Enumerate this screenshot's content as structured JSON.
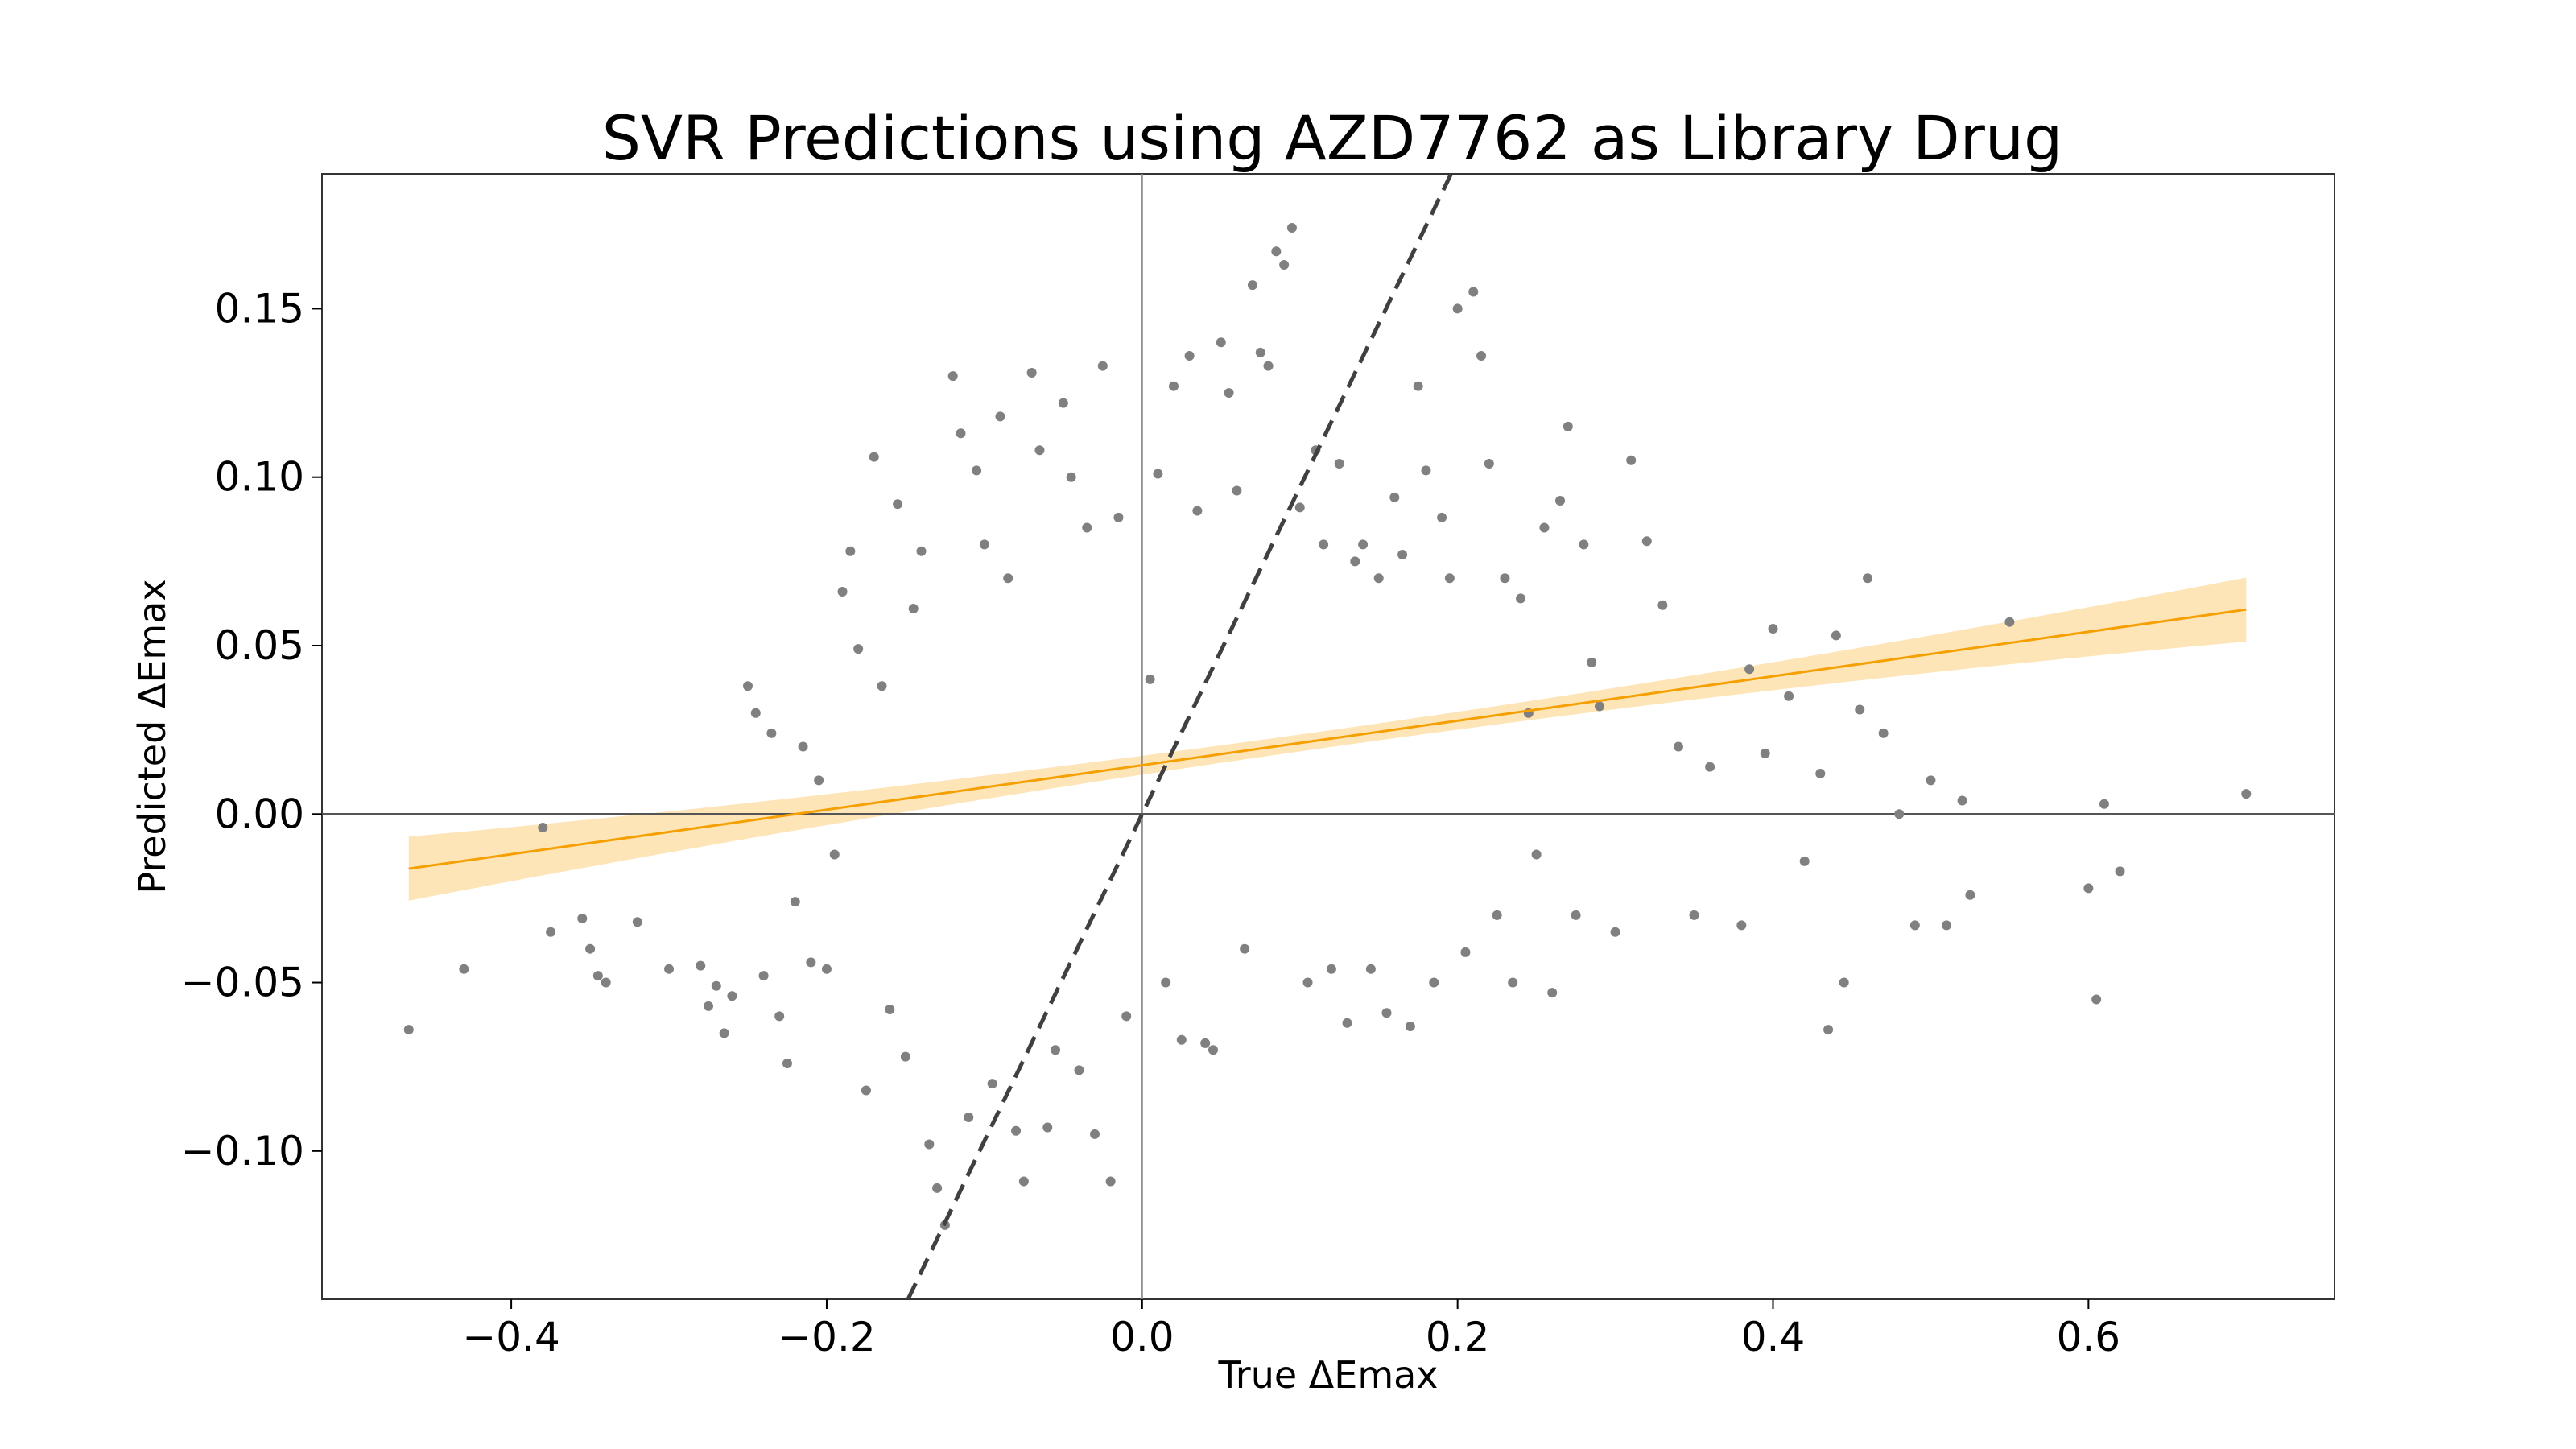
{
  "chart_data": {
    "type": "scatter",
    "title": "SVR Predictions using AZD7762 as Library Drug",
    "xlabel": "True ΔEmax",
    "ylabel": "Predicted ΔEmax",
    "xlim": [
      -0.52,
      0.756
    ],
    "ylim": [
      -0.144,
      0.19
    ],
    "xticks": [
      -0.4,
      -0.2,
      0.0,
      0.2,
      0.4,
      0.6
    ],
    "xtick_labels": [
      "−0.4",
      "−0.2",
      "0.0",
      "0.2",
      "0.4",
      "0.6"
    ],
    "yticks": [
      -0.1,
      -0.05,
      0.0,
      0.05,
      0.1,
      0.15
    ],
    "ytick_labels": [
      "−0.10",
      "−0.05",
      "0.00",
      "0.05",
      "0.10",
      "0.15"
    ],
    "grid": false,
    "reference_lines": {
      "x": 0,
      "y": 0
    },
    "identity_line": {
      "slope": 0.97,
      "intercept": 0.0
    },
    "regression": {
      "x_range": [
        -0.465,
        0.7
      ],
      "slope": 0.066,
      "intercept": 0.0145,
      "ci_halfwidth_at_ends": 0.0095,
      "ci_halfwidth_at_center": 0.0025
    },
    "colors": {
      "points": "#808080",
      "regression": "#f5a000",
      "ci_band": "#fde5b8",
      "identity": "#404040",
      "ref_lines": "#555555"
    },
    "series": [
      {
        "points": [
          [
            -0.465,
            -0.064
          ],
          [
            -0.43,
            -0.046
          ],
          [
            -0.38,
            -0.004
          ],
          [
            -0.375,
            -0.035
          ],
          [
            -0.355,
            -0.031
          ],
          [
            -0.35,
            -0.04
          ],
          [
            -0.345,
            -0.048
          ],
          [
            -0.34,
            -0.05
          ],
          [
            -0.32,
            -0.032
          ],
          [
            -0.3,
            -0.046
          ],
          [
            -0.28,
            -0.045
          ],
          [
            -0.275,
            -0.057
          ],
          [
            -0.27,
            -0.051
          ],
          [
            -0.265,
            -0.065
          ],
          [
            -0.26,
            -0.054
          ],
          [
            -0.25,
            0.038
          ],
          [
            -0.245,
            0.03
          ],
          [
            -0.24,
            -0.048
          ],
          [
            -0.235,
            0.024
          ],
          [
            -0.23,
            -0.06
          ],
          [
            -0.225,
            -0.074
          ],
          [
            -0.22,
            -0.026
          ],
          [
            -0.215,
            0.02
          ],
          [
            -0.21,
            -0.044
          ],
          [
            -0.205,
            0.01
          ],
          [
            -0.2,
            -0.046
          ],
          [
            -0.195,
            -0.012
          ],
          [
            -0.19,
            0.066
          ],
          [
            -0.185,
            0.078
          ],
          [
            -0.18,
            0.049
          ],
          [
            -0.175,
            -0.082
          ],
          [
            -0.17,
            0.106
          ],
          [
            -0.165,
            0.038
          ],
          [
            -0.16,
            -0.058
          ],
          [
            -0.155,
            0.092
          ],
          [
            -0.15,
            -0.072
          ],
          [
            -0.145,
            0.061
          ],
          [
            -0.14,
            0.078
          ],
          [
            -0.135,
            -0.098
          ],
          [
            -0.13,
            -0.111
          ],
          [
            -0.125,
            -0.122
          ],
          [
            -0.12,
            0.13
          ],
          [
            -0.115,
            0.113
          ],
          [
            -0.11,
            -0.09
          ],
          [
            -0.105,
            0.102
          ],
          [
            -0.1,
            0.08
          ],
          [
            -0.095,
            -0.08
          ],
          [
            -0.09,
            0.118
          ],
          [
            -0.085,
            0.07
          ],
          [
            -0.08,
            -0.094
          ],
          [
            -0.075,
            -0.109
          ],
          [
            -0.07,
            0.131
          ],
          [
            -0.065,
            0.108
          ],
          [
            -0.06,
            -0.093
          ],
          [
            -0.055,
            -0.07
          ],
          [
            -0.05,
            0.122
          ],
          [
            -0.045,
            0.1
          ],
          [
            -0.04,
            -0.076
          ],
          [
            -0.035,
            0.085
          ],
          [
            -0.03,
            -0.095
          ],
          [
            -0.025,
            0.133
          ],
          [
            -0.02,
            -0.109
          ],
          [
            -0.015,
            0.088
          ],
          [
            -0.01,
            -0.06
          ],
          [
            0.005,
            0.04
          ],
          [
            0.01,
            0.101
          ],
          [
            0.015,
            -0.05
          ],
          [
            0.02,
            0.127
          ],
          [
            0.025,
            -0.067
          ],
          [
            0.03,
            0.136
          ],
          [
            0.035,
            0.09
          ],
          [
            0.04,
            -0.068
          ],
          [
            0.045,
            -0.07
          ],
          [
            0.05,
            0.14
          ],
          [
            0.055,
            0.125
          ],
          [
            0.06,
            0.096
          ],
          [
            0.065,
            -0.04
          ],
          [
            0.07,
            0.157
          ],
          [
            0.075,
            0.137
          ],
          [
            0.08,
            0.133
          ],
          [
            0.085,
            0.167
          ],
          [
            0.09,
            0.163
          ],
          [
            0.095,
            0.174
          ],
          [
            0.1,
            0.091
          ],
          [
            0.105,
            -0.05
          ],
          [
            0.11,
            0.108
          ],
          [
            0.115,
            0.08
          ],
          [
            0.12,
            -0.046
          ],
          [
            0.125,
            0.104
          ],
          [
            0.13,
            -0.062
          ],
          [
            0.135,
            0.075
          ],
          [
            0.14,
            0.08
          ],
          [
            0.145,
            -0.046
          ],
          [
            0.15,
            0.07
          ],
          [
            0.155,
            -0.059
          ],
          [
            0.16,
            0.094
          ],
          [
            0.165,
            0.077
          ],
          [
            0.17,
            -0.063
          ],
          [
            0.175,
            0.127
          ],
          [
            0.18,
            0.102
          ],
          [
            0.185,
            -0.05
          ],
          [
            0.19,
            0.088
          ],
          [
            0.195,
            0.07
          ],
          [
            0.2,
            0.15
          ],
          [
            0.205,
            -0.041
          ],
          [
            0.21,
            0.155
          ],
          [
            0.215,
            0.136
          ],
          [
            0.22,
            0.104
          ],
          [
            0.225,
            -0.03
          ],
          [
            0.23,
            0.07
          ],
          [
            0.235,
            -0.05
          ],
          [
            0.24,
            0.064
          ],
          [
            0.245,
            0.03
          ],
          [
            0.25,
            -0.012
          ],
          [
            0.255,
            0.085
          ],
          [
            0.26,
            -0.053
          ],
          [
            0.265,
            0.093
          ],
          [
            0.27,
            0.115
          ],
          [
            0.275,
            -0.03
          ],
          [
            0.28,
            0.08
          ],
          [
            0.285,
            0.045
          ],
          [
            0.29,
            0.032
          ],
          [
            0.3,
            -0.035
          ],
          [
            0.31,
            0.105
          ],
          [
            0.32,
            0.081
          ],
          [
            0.33,
            0.062
          ],
          [
            0.34,
            0.02
          ],
          [
            0.35,
            -0.03
          ],
          [
            0.36,
            0.014
          ],
          [
            0.38,
            -0.033
          ],
          [
            0.385,
            0.043
          ],
          [
            0.395,
            0.018
          ],
          [
            0.4,
            0.055
          ],
          [
            0.41,
            0.035
          ],
          [
            0.42,
            -0.014
          ],
          [
            0.43,
            0.012
          ],
          [
            0.435,
            -0.064
          ],
          [
            0.44,
            0.053
          ],
          [
            0.445,
            -0.05
          ],
          [
            0.455,
            0.031
          ],
          [
            0.46,
            0.07
          ],
          [
            0.47,
            0.024
          ],
          [
            0.48,
            0.0
          ],
          [
            0.49,
            -0.033
          ],
          [
            0.5,
            0.01
          ],
          [
            0.51,
            -0.033
          ],
          [
            0.52,
            0.004
          ],
          [
            0.525,
            -0.024
          ],
          [
            0.55,
            0.057
          ],
          [
            0.6,
            -0.022
          ],
          [
            0.605,
            -0.055
          ],
          [
            0.61,
            0.003
          ],
          [
            0.62,
            -0.017
          ],
          [
            0.7,
            0.006
          ]
        ]
      }
    ]
  }
}
